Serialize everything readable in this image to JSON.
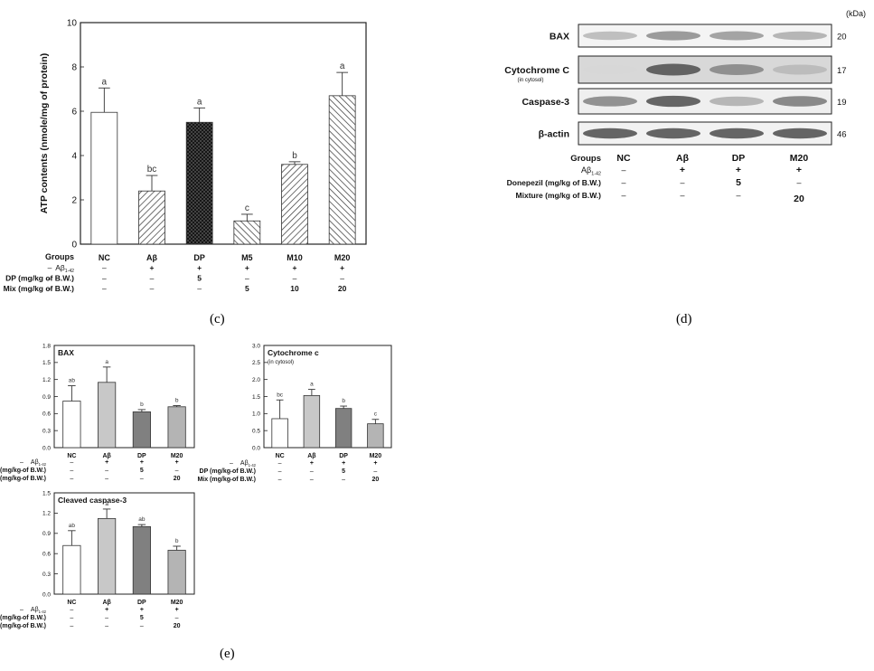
{
  "panel_labels": {
    "c": "(c)",
    "d": "(d)",
    "e": "(e)"
  },
  "treatment_labels": {
    "groups": "Groups",
    "abeta": "Aβ",
    "abeta_sub": "1-42",
    "dp": "DP (mg/kg of B.W.)",
    "mix": "Mix (mg/kg of B.W.)",
    "donepezil": "Donepezil (mg/kg of B.W.)",
    "mixture": "Mixture (mg/kg of B.W.)"
  },
  "chart_data": [
    {
      "id": "c",
      "type": "bar",
      "ylabel": "ATP contents (nmole/mg of protein)",
      "ylim": [
        0,
        10
      ],
      "yticks": [
        0,
        2,
        4,
        6,
        8,
        10
      ],
      "categories": [
        "NC",
        "Aβ",
        "DP",
        "M5",
        "M10",
        "M20"
      ],
      "values": [
        5.95,
        2.4,
        5.5,
        1.05,
        3.6,
        6.7
      ],
      "errors": [
        1.1,
        0.7,
        0.65,
        0.3,
        0.12,
        1.05
      ],
      "letters": [
        "a",
        "bc",
        "a",
        "c",
        "b",
        "a"
      ],
      "patterns": [
        "white",
        "hatch-right",
        "crosshatch",
        "hatch-left",
        "hatch-right",
        "hatch-left"
      ],
      "treatments": {
        "abeta": [
          "–",
          "+",
          "+",
          "+",
          "+",
          "+"
        ],
        "dp": [
          "–",
          "–",
          "5",
          "–",
          "–",
          "–"
        ],
        "mix": [
          "–",
          "–",
          "–",
          "5",
          "10",
          "20"
        ]
      }
    },
    {
      "id": "e1",
      "type": "bar",
      "title": "BAX",
      "ylim": [
        0,
        1.8
      ],
      "yticks": [
        0.0,
        0.3,
        0.6,
        0.9,
        1.2,
        1.5,
        1.8
      ],
      "categories": [
        "NC",
        "Aβ",
        "DP",
        "M20"
      ],
      "values": [
        0.82,
        1.15,
        0.63,
        0.72
      ],
      "errors": [
        0.27,
        0.27,
        0.04,
        0.02
      ],
      "letters": [
        "ab",
        "a",
        "b",
        "b"
      ],
      "colors": [
        "#ffffff",
        "#c8c8c8",
        "#808080",
        "#b4b4b4"
      ],
      "treatments": {
        "abeta": [
          "–",
          "+",
          "+",
          "+"
        ],
        "dp": [
          "–",
          "–",
          "5",
          "–"
        ],
        "mix": [
          "–",
          "–",
          "–",
          "20"
        ]
      }
    },
    {
      "id": "e2",
      "type": "bar",
      "title": "Cytochrome c",
      "subtitle": "(in cytosol)",
      "ylim": [
        0,
        3.0
      ],
      "yticks": [
        0.0,
        0.5,
        1.0,
        1.5,
        2.0,
        2.5,
        3.0
      ],
      "categories": [
        "NC",
        "Aβ",
        "DP",
        "M20"
      ],
      "values": [
        0.85,
        1.53,
        1.15,
        0.7
      ],
      "errors": [
        0.55,
        0.18,
        0.07,
        0.13
      ],
      "letters": [
        "bc",
        "a",
        "b",
        "c"
      ],
      "colors": [
        "#ffffff",
        "#c8c8c8",
        "#808080",
        "#b4b4b4"
      ],
      "treatments": {
        "abeta": [
          "–",
          "+",
          "+",
          "+"
        ],
        "dp": [
          "–",
          "–",
          "5",
          "–"
        ],
        "mix": [
          "–",
          "–",
          "–",
          "20"
        ]
      }
    },
    {
      "id": "e3",
      "type": "bar",
      "title": "Cleaved caspase-3",
      "ylim": [
        0,
        1.5
      ],
      "yticks": [
        0.0,
        0.3,
        0.6,
        0.9,
        1.2,
        1.5
      ],
      "categories": [
        "NC",
        "Aβ",
        "DP",
        "M20"
      ],
      "values": [
        0.72,
        1.12,
        1.0,
        0.65
      ],
      "errors": [
        0.22,
        0.14,
        0.03,
        0.06
      ],
      "letters": [
        "ab",
        "a",
        "ab",
        "b"
      ],
      "colors": [
        "#ffffff",
        "#c8c8c8",
        "#808080",
        "#b4b4b4"
      ],
      "treatments": {
        "abeta": [
          "–",
          "+",
          "+",
          "+"
        ],
        "dp": [
          "–",
          "–",
          "5",
          "–"
        ],
        "mix": [
          "–",
          "–",
          "–",
          "20"
        ]
      }
    }
  ],
  "western_blot": {
    "unit_label": "(kDa)",
    "bands": [
      {
        "name": "BAX",
        "kda": "20",
        "intensity": [
          0.35,
          0.55,
          0.5,
          0.4
        ],
        "background": "#f4f4f4"
      },
      {
        "name": "Cytochrome C",
        "sub": "(in cytosol)",
        "kda": "17",
        "intensity": [
          0.2,
          0.85,
          0.6,
          0.35
        ],
        "background": "#d8d8d8"
      },
      {
        "name": "Caspase-3",
        "kda": "19",
        "intensity": [
          0.6,
          0.85,
          0.4,
          0.65
        ],
        "background": "#efefef"
      },
      {
        "name": "β-actin",
        "kda": "46",
        "intensity": [
          0.85,
          0.85,
          0.85,
          0.85
        ],
        "background": "#f2f2f2"
      }
    ],
    "groups": [
      "NC",
      "Aβ",
      "DP",
      "M20"
    ],
    "treatments": {
      "abeta": [
        "–",
        "+",
        "+",
        "+"
      ],
      "donepezil": [
        "–",
        "–",
        "5",
        "–"
      ],
      "mixture": [
        "–",
        "–",
        "–",
        "20"
      ]
    }
  }
}
